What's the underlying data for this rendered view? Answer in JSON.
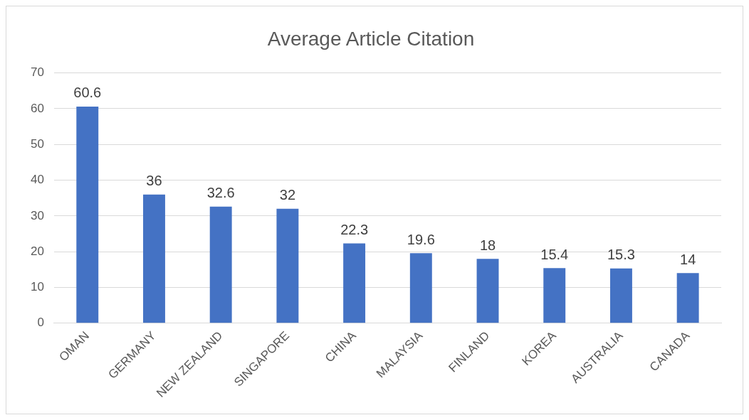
{
  "chart_data": {
    "type": "bar",
    "title": "Average Article Citation",
    "categories": [
      "OMAN",
      "GERMANY",
      "NEW ZEALAND",
      "SINGAPORE",
      "CHINA",
      "MALAYSIA",
      "FINLAND",
      "KOREA",
      "AUSTRALIA",
      "CANADA"
    ],
    "values": [
      60.6,
      36,
      32.6,
      32,
      22.3,
      19.6,
      18,
      15.4,
      15.3,
      14
    ],
    "color": "#4472c4",
    "ylim": [
      0,
      70
    ],
    "yticks": [
      0,
      10,
      20,
      30,
      40,
      50,
      60,
      70
    ],
    "grid": "y",
    "data_labels": true
  }
}
